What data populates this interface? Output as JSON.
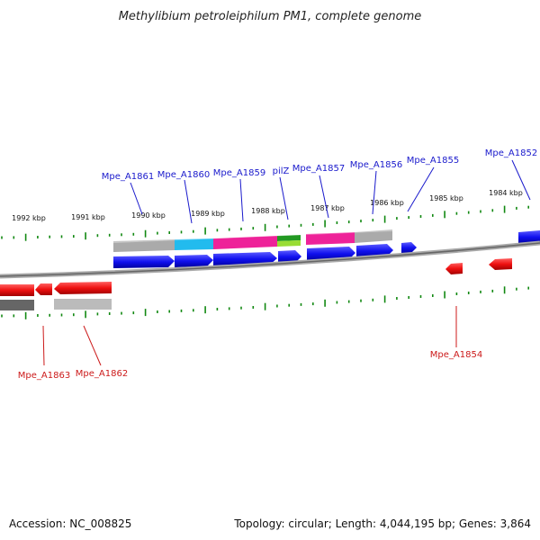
{
  "title": "Methylibium petroleiphilum PM1, complete genome",
  "footer": {
    "accession": "Accession: NC_008825",
    "topology": "Topology: circular; Length: 4,044,195 bp; Genes: 3,864"
  },
  "colors": {
    "forward_gene": "#1010ee",
    "reverse_gene": "#ee1010",
    "backbone": "#888888",
    "tick": "#118811",
    "forward_label": "#1a1acc",
    "reverse_label": "#cc1a1a",
    "cog_gray": "#aaaaaa",
    "cog_cyan": "#22bbee",
    "cog_magenta": "#ee2299",
    "cog_green": "#229922",
    "cog_lime": "#99dd33",
    "cog_darkgray": "#666666"
  },
  "kbp_ticks": [
    "1992 kbp",
    "1991 kbp",
    "1990 kbp",
    "1989 kbp",
    "1988 kbp",
    "1987 kbp",
    "1986 kbp",
    "1985 kbp",
    "1984 kbp"
  ],
  "forward_labels": [
    "Mpe_A1861",
    "Mpe_A1860",
    "Mpe_A1859",
    "pilZ",
    "Mpe_A1857",
    "Mpe_A1856",
    "Mpe_A1855",
    "Mpe_A1852"
  ],
  "reverse_labels": [
    "Mpe_A1863",
    "Mpe_A1862",
    "Mpe_A1854"
  ]
}
